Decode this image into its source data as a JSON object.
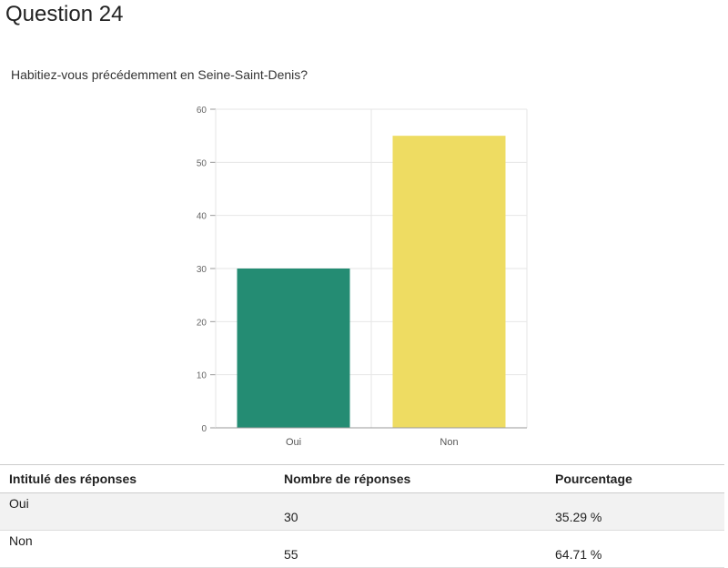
{
  "page": {
    "title": "Question 24",
    "question": "Habitiez-vous précédemment en Seine-Saint-Denis?"
  },
  "colors": {
    "oui": "#248c73",
    "non": "#eedc62",
    "grid": "#e6e6e6",
    "axis": "#999999"
  },
  "chart_data": {
    "type": "bar",
    "categories": [
      "Oui",
      "Non"
    ],
    "values": [
      30,
      55
    ],
    "ylim": [
      0,
      60
    ],
    "yticks": [
      0,
      10,
      20,
      30,
      40,
      50,
      60
    ],
    "grid": true,
    "title": "",
    "xlabel": "",
    "ylabel": ""
  },
  "table": {
    "headers": [
      "Intitulé des réponses",
      "Nombre de réponses",
      "Pourcentage"
    ],
    "rows": [
      {
        "label": "Oui",
        "count": "30",
        "percent": "35.29 %"
      },
      {
        "label": "Non",
        "count": "55",
        "percent": "64.71 %"
      }
    ]
  }
}
